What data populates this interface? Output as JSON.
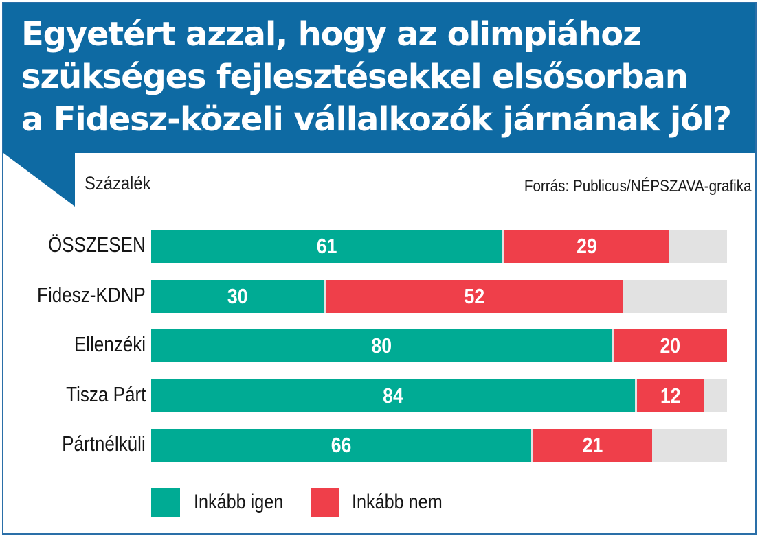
{
  "header": {
    "title_lines": [
      "Egyetért azzal, hogy az olimpiához",
      "szükséges fejlesztésekkel elsősorban",
      "a Fidesz-közeli vállalkozók járnának jól?"
    ]
  },
  "subtitle": "Százalék",
  "source": "Forrás: Publicus/NÉPSZAVA-grafika",
  "colors": {
    "header_bg": "#0e6aa3",
    "yes": "#00ab94",
    "no": "#ef3f4a",
    "remainder": "#e2e2e2"
  },
  "chart_data": {
    "type": "bar",
    "orientation": "horizontal",
    "stacked": true,
    "title": "Egyetért azzal, hogy az olimpiához szükséges fejlesztésekkel elsősorban a Fidesz-közeli vállalkozók járnának jól?",
    "ylabel": "",
    "xlabel": "Százalék",
    "xlim": [
      0,
      100
    ],
    "grid": false,
    "legend_position": "bottom",
    "categories": [
      "ÖSSZESEN",
      "Fidesz-KDNP",
      "Ellenzéki",
      "Tisza Párt",
      "Pártnélküli"
    ],
    "series": [
      {
        "name": "Inkább igen",
        "color": "#00ab94",
        "values": [
          61,
          30,
          80,
          84,
          66
        ]
      },
      {
        "name": "Inkább nem",
        "color": "#ef3f4a",
        "values": [
          29,
          52,
          20,
          12,
          21
        ]
      }
    ]
  }
}
